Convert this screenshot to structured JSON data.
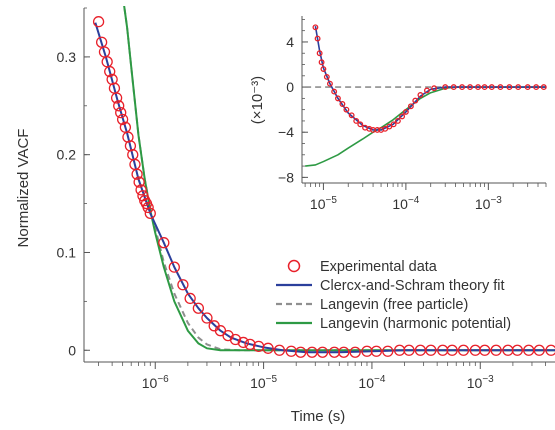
{
  "chart_data": [
    {
      "panel": "main",
      "type": "scatter",
      "xlabel": "Time (s)",
      "ylabel": "Normalized VACF",
      "xscale": "log",
      "xlim": [
        2.2e-07,
        0.005
      ],
      "ylim": [
        -0.012,
        0.35
      ],
      "xticks": [
        {
          "value": 1e-06,
          "base": "10",
          "exp": "−6"
        },
        {
          "value": 1e-05,
          "base": "10",
          "exp": "−5"
        },
        {
          "value": 0.0001,
          "base": "10",
          "exp": "−4"
        },
        {
          "value": 0.001,
          "base": "10",
          "exp": "−3"
        }
      ],
      "yticks": [
        {
          "value": 0,
          "label": "0"
        },
        {
          "value": 0.1,
          "label": "0.1"
        },
        {
          "value": 0.2,
          "label": "0.2"
        },
        {
          "value": 0.3,
          "label": "0.3"
        }
      ],
      "legend_position": "bottom-right",
      "series": [
        {
          "name": "Experimental data",
          "style": "markers",
          "color": "#e8202a",
          "points": [
            [
              3e-07,
              0.336
            ],
            [
              3.2e-07,
              0.315
            ],
            [
              3.4e-07,
              0.305
            ],
            [
              3.6e-07,
              0.295
            ],
            [
              3.8e-07,
              0.285
            ],
            [
              4e-07,
              0.277
            ],
            [
              4.2e-07,
              0.268
            ],
            [
              4.4e-07,
              0.258
            ],
            [
              4.6e-07,
              0.25
            ],
            [
              4.8e-07,
              0.243
            ],
            [
              5e-07,
              0.236
            ],
            [
              5.3e-07,
              0.228
            ],
            [
              5.6e-07,
              0.218
            ],
            [
              5.9e-07,
              0.209
            ],
            [
              6.2e-07,
              0.2
            ],
            [
              6.5e-07,
              0.19
            ],
            [
              6.8e-07,
              0.18
            ],
            [
              7.1e-07,
              0.172
            ],
            [
              7.4e-07,
              0.164
            ],
            [
              7.7e-07,
              0.158
            ],
            [
              8e-07,
              0.153
            ],
            [
              8.3e-07,
              0.15
            ],
            [
              8.6e-07,
              0.146
            ],
            [
              9e-07,
              0.14
            ],
            [
              1.2e-06,
              0.11
            ],
            [
              1.5e-06,
              0.085
            ],
            [
              1.8e-06,
              0.067
            ],
            [
              2.1e-06,
              0.053
            ],
            [
              2.5e-06,
              0.043
            ],
            [
              3e-06,
              0.033
            ],
            [
              3.5e-06,
              0.025
            ],
            [
              4e-06,
              0.02
            ],
            [
              4.7e-06,
              0.015
            ],
            [
              5.5e-06,
              0.011
            ],
            [
              6.5e-06,
              0.008
            ],
            [
              7.5e-06,
              0.006
            ],
            [
              9e-06,
              0.004
            ],
            [
              1.1e-05,
              0.002
            ],
            [
              1.4e-05,
              0.0
            ],
            [
              1.8e-05,
              -0.001
            ],
            [
              2.2e-05,
              -0.002
            ],
            [
              2.8e-05,
              -0.002
            ],
            [
              3.5e-05,
              -0.002
            ],
            [
              4.5e-05,
              -0.002
            ],
            [
              5.5e-05,
              -0.002
            ],
            [
              7e-05,
              -0.002
            ],
            [
              9e-05,
              -0.001
            ],
            [
              0.00011,
              -0.001
            ],
            [
              0.00014,
              -0.001
            ],
            [
              0.00018,
              0.0
            ],
            [
              0.00022,
              0.0
            ],
            [
              0.00028,
              0.0
            ],
            [
              0.00035,
              0.0
            ],
            [
              0.00045,
              0.0
            ],
            [
              0.00055,
              0.0
            ],
            [
              0.0007,
              0.0
            ],
            [
              0.0009,
              0.0
            ],
            [
              0.0011,
              0.0
            ],
            [
              0.0014,
              0.0
            ],
            [
              0.0018,
              0.0
            ],
            [
              0.0022,
              0.0
            ],
            [
              0.0028,
              0.0
            ],
            [
              0.0035,
              0.0
            ],
            [
              0.0045,
              0.0
            ]
          ]
        },
        {
          "name": "Clercx-and-Schram theory fit",
          "style": "line",
          "color": "#2b3f9c",
          "points": [
            [
              2.8e-07,
              0.335
            ],
            [
              3.5e-07,
              0.3
            ],
            [
              4.5e-07,
              0.255
            ],
            [
              5.5e-07,
              0.222
            ],
            [
              7e-07,
              0.175
            ],
            [
              9e-07,
              0.14
            ],
            [
              1.2e-06,
              0.11
            ],
            [
              1.5e-06,
              0.085
            ],
            [
              2e-06,
              0.058
            ],
            [
              2.5e-06,
              0.043
            ],
            [
              3e-06,
              0.033
            ],
            [
              4e-06,
              0.02
            ],
            [
              5e-06,
              0.013
            ],
            [
              7e-06,
              0.007
            ],
            [
              1e-05,
              0.003
            ],
            [
              1.5e-05,
              0.0
            ],
            [
              2.5e-05,
              -0.002
            ],
            [
              5e-05,
              -0.002
            ],
            [
              0.0001,
              -0.001
            ],
            [
              0.0002,
              0.0
            ],
            [
              0.0005,
              0.0
            ],
            [
              0.001,
              0.0
            ],
            [
              0.005,
              0.0
            ]
          ]
        },
        {
          "name": "Langevin (free particle)",
          "style": "dashed",
          "color": "#8f8f8f",
          "points": [
            [
              5.05e-07,
              0.36
            ],
            [
              5.5e-07,
              0.33
            ],
            [
              6e-07,
              0.29
            ],
            [
              7e-07,
              0.22
            ],
            [
              8e-07,
              0.175
            ],
            [
              9e-07,
              0.145
            ],
            [
              1e-06,
              0.125
            ],
            [
              1.2e-06,
              0.09
            ],
            [
              1.5e-06,
              0.058
            ],
            [
              2e-06,
              0.028
            ],
            [
              2.5e-06,
              0.013
            ],
            [
              3e-06,
              0.006
            ],
            [
              4e-06,
              0.001
            ],
            [
              6e-06,
              0.0
            ],
            [
              1e-05,
              0.0
            ],
            [
              0.005,
              0.0
            ]
          ]
        },
        {
          "name": "Langevin (harmonic potential)",
          "style": "line",
          "color": "#2e9a44",
          "points": [
            [
              5.05e-07,
              0.36
            ],
            [
              5.5e-07,
              0.33
            ],
            [
              6e-07,
              0.29
            ],
            [
              7e-07,
              0.22
            ],
            [
              8e-07,
              0.175
            ],
            [
              9e-07,
              0.143
            ],
            [
              1e-06,
              0.12
            ],
            [
              1.2e-06,
              0.085
            ],
            [
              1.5e-06,
              0.05
            ],
            [
              2e-06,
              0.02
            ],
            [
              2.5e-06,
              0.007
            ],
            [
              3e-06,
              0.002
            ],
            [
              4e-06,
              0.0
            ],
            [
              1e-05,
              0.0
            ],
            [
              0.005,
              0.0
            ]
          ]
        }
      ]
    },
    {
      "panel": "inset",
      "type": "scatter",
      "xlabel": "",
      "ylabel": "(×10⁻³)",
      "xscale": "log",
      "xlim": [
        5.5e-06,
        0.005
      ],
      "ylim": [
        -8.5,
        6.3
      ],
      "xticks": [
        {
          "value": 1e-05,
          "base": "10",
          "exp": "−5"
        },
        {
          "value": 0.0001,
          "base": "10",
          "exp": "−4"
        },
        {
          "value": 0.001,
          "base": "10",
          "exp": "−3"
        }
      ],
      "yticks": [
        {
          "value": 4,
          "label": "4"
        },
        {
          "value": 0,
          "label": "0"
        },
        {
          "value": -4,
          "label": "−4"
        },
        {
          "value": -8,
          "label": "−8"
        }
      ],
      "series": [
        {
          "name": "Experimental data",
          "style": "markers",
          "color": "#e8202a",
          "points": [
            [
              8e-06,
              5.3
            ],
            [
              8.5e-06,
              4.3
            ],
            [
              9e-06,
              3.0
            ],
            [
              9.5e-06,
              2.2
            ],
            [
              1e-05,
              1.6
            ],
            [
              1.1e-05,
              0.9
            ],
            [
              1.2e-05,
              0.3
            ],
            [
              1.35e-05,
              -0.4
            ],
            [
              1.5e-05,
              -1.0
            ],
            [
              1.7e-05,
              -1.5
            ],
            [
              1.9e-05,
              -2.0
            ],
            [
              2.2e-05,
              -2.5
            ],
            [
              2.5e-05,
              -3.0
            ],
            [
              2.8e-05,
              -3.3
            ],
            [
              3.2e-05,
              -3.6
            ],
            [
              3.6e-05,
              -3.7
            ],
            [
              4e-05,
              -3.8
            ],
            [
              4.5e-05,
              -3.8
            ],
            [
              5e-05,
              -3.8
            ],
            [
              5.6e-05,
              -3.7
            ],
            [
              6.3e-05,
              -3.5
            ],
            [
              7.1e-05,
              -3.3
            ],
            [
              8e-05,
              -3.0
            ],
            [
              9e-05,
              -2.6
            ],
            [
              0.0001,
              -2.2
            ],
            [
              0.000115,
              -1.7
            ],
            [
              0.00013,
              -1.2
            ],
            [
              0.00015,
              -0.7
            ],
            [
              0.00018,
              -0.3
            ],
            [
              0.00022,
              -0.1
            ],
            [
              0.0003,
              0.0
            ],
            [
              0.00038,
              0.0
            ],
            [
              0.00048,
              0.0
            ],
            [
              0.0006,
              0.0
            ],
            [
              0.00075,
              0.0
            ],
            [
              0.0009,
              0.0
            ],
            [
              0.0011,
              0.0
            ],
            [
              0.0014,
              0.0
            ],
            [
              0.0018,
              0.0
            ],
            [
              0.0023,
              0.0
            ],
            [
              0.003,
              0.0
            ],
            [
              0.0038,
              0.0
            ],
            [
              0.0047,
              0.0
            ]
          ]
        },
        {
          "name": "Clercx-and-Schram theory fit",
          "style": "line",
          "color": "#2b3f9c",
          "points": [
            [
              8e-06,
              5.4
            ],
            [
              9e-06,
              3.2
            ],
            [
              1e-05,
              1.7
            ],
            [
              1.2e-05,
              0.3
            ],
            [
              1.5e-05,
              -1.0
            ],
            [
              2e-05,
              -2.3
            ],
            [
              3e-05,
              -3.4
            ],
            [
              4e-05,
              -3.8
            ],
            [
              5e-05,
              -3.8
            ],
            [
              7e-05,
              -3.3
            ],
            [
              0.0001,
              -2.2
            ],
            [
              0.00015,
              -0.8
            ],
            [
              0.0002,
              -0.2
            ],
            [
              0.0003,
              0.0
            ],
            [
              0.005,
              0.0
            ]
          ]
        },
        {
          "name": "Langevin (free particle)",
          "style": "dashed",
          "color": "#8f8f8f",
          "points": [
            [
              6e-06,
              0.0
            ],
            [
              0.005,
              0.0
            ]
          ]
        },
        {
          "name": "Langevin (harmonic potential)",
          "style": "line",
          "color": "#2e9a44",
          "points": [
            [
              6e-06,
              -7.0
            ],
            [
              8e-06,
              -6.9
            ],
            [
              1e-05,
              -6.6
            ],
            [
              1.5e-05,
              -6.0
            ],
            [
              2e-05,
              -5.4
            ],
            [
              3e-05,
              -4.6
            ],
            [
              4e-05,
              -4.0
            ],
            [
              5e-05,
              -3.6
            ],
            [
              7e-05,
              -2.9
            ],
            [
              0.0001,
              -2.0
            ],
            [
              0.00015,
              -1.0
            ],
            [
              0.0002,
              -0.5
            ],
            [
              0.0003,
              -0.1
            ],
            [
              0.0004,
              0.0
            ],
            [
              0.005,
              0.0
            ]
          ]
        }
      ]
    }
  ]
}
